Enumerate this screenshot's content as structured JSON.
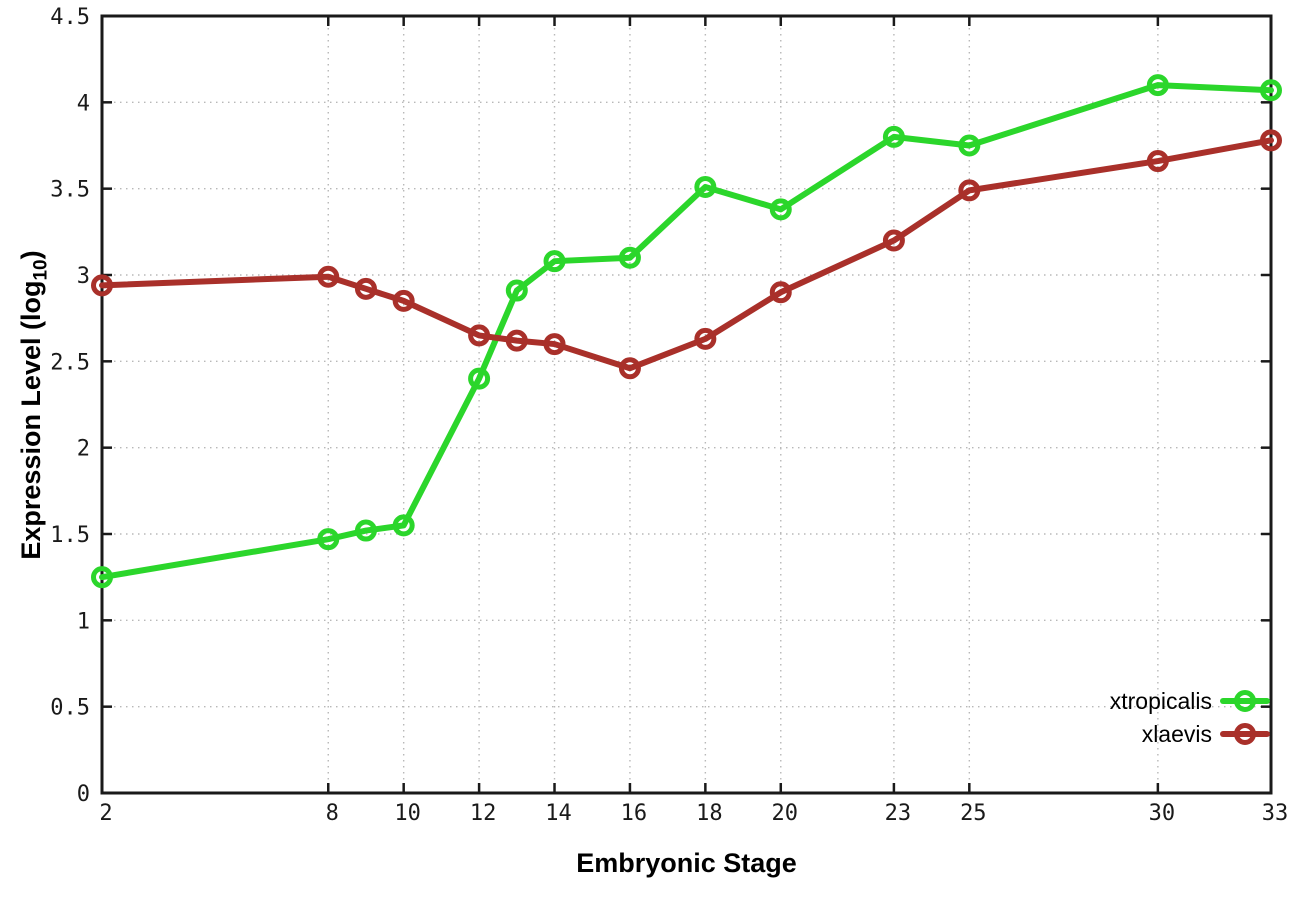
{
  "figure": {
    "background": "#ffffff",
    "xlabel": "Embryonic Stage",
    "ylabel": {
      "prefix": "Expression Level (log",
      "subscript": "10",
      "suffix": ")"
    }
  },
  "chart_data": {
    "type": "line",
    "title": "",
    "xlabel": "Embryonic Stage",
    "ylabel": "Expression Level (log10)",
    "xlim": [
      2,
      33
    ],
    "ylim": [
      0,
      4.5
    ],
    "grid": true,
    "grid_style": "dotted",
    "legend_position": "inside-bottom-right",
    "axis_color": "#1a1a1a",
    "grid_color": "#b8b8b8",
    "x": [
      2,
      8,
      9,
      10,
      12,
      13,
      14,
      16,
      18,
      20,
      23,
      25,
      30,
      33
    ],
    "x_ticks": [
      {
        "pos": 2,
        "label": "2"
      },
      {
        "pos": 8,
        "label": "8"
      },
      {
        "pos": 10,
        "label": "10"
      },
      {
        "pos": 12,
        "label": "12"
      },
      {
        "pos": 14,
        "label": "14"
      },
      {
        "pos": 16,
        "label": "16"
      },
      {
        "pos": 18,
        "label": "18"
      },
      {
        "pos": 20,
        "label": "20"
      },
      {
        "pos": 23,
        "label": "23"
      },
      {
        "pos": 25,
        "label": "25"
      },
      {
        "pos": 30,
        "label": "30"
      },
      {
        "pos": 33,
        "label": "33"
      }
    ],
    "y_ticks": [
      {
        "pos": 0,
        "label": "0"
      },
      {
        "pos": 0.5,
        "label": "0.5"
      },
      {
        "pos": 1,
        "label": "1"
      },
      {
        "pos": 1.5,
        "label": "1.5"
      },
      {
        "pos": 2,
        "label": "2"
      },
      {
        "pos": 2.5,
        "label": "2.5"
      },
      {
        "pos": 3,
        "label": "3"
      },
      {
        "pos": 3.5,
        "label": "3.5"
      },
      {
        "pos": 4,
        "label": "4"
      },
      {
        "pos": 4.5,
        "label": "4.5"
      }
    ],
    "series": [
      {
        "name": "xtropicalis",
        "color": "#2bd62b",
        "marker": "open-circle",
        "values": [
          1.25,
          1.47,
          1.52,
          1.55,
          2.4,
          2.91,
          3.08,
          3.1,
          3.51,
          3.38,
          3.8,
          3.75,
          4.1,
          4.07
        ]
      },
      {
        "name": "xlaevis",
        "color": "#a9302a",
        "marker": "open-circle",
        "values": [
          2.94,
          2.99,
          2.92,
          2.85,
          2.65,
          2.62,
          2.6,
          2.46,
          2.63,
          2.9,
          3.2,
          3.49,
          3.66,
          3.78
        ]
      }
    ]
  }
}
